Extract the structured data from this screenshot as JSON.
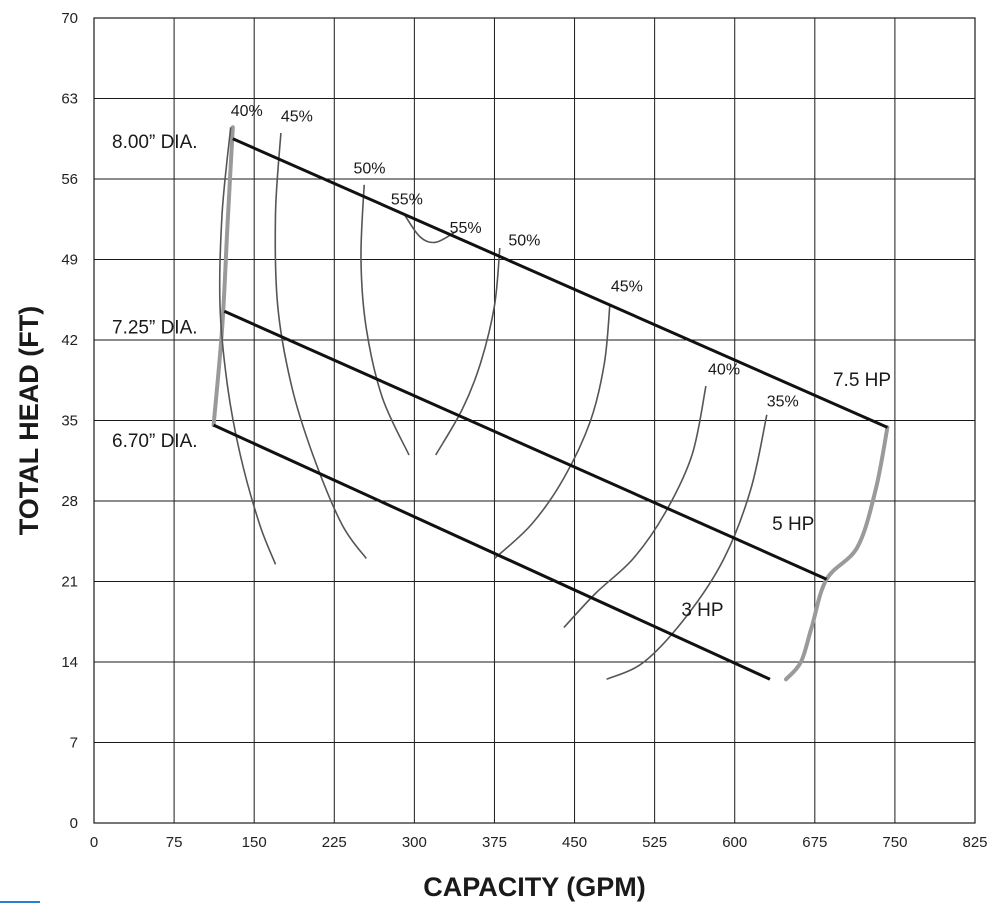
{
  "chart_data": {
    "type": "line",
    "xlabel": "CAPACITY (GPM)",
    "ylabel": "TOTAL HEAD (FT)",
    "xlim": [
      0,
      825
    ],
    "ylim": [
      0,
      70
    ],
    "x_ticks": [
      0,
      75,
      150,
      225,
      300,
      375,
      450,
      525,
      600,
      675,
      750,
      825
    ],
    "y_ticks": [
      0,
      7,
      14,
      21,
      28,
      35,
      42,
      49,
      56,
      63,
      70
    ],
    "x_tick_labels": [
      "0",
      "75",
      "150",
      "225",
      "300",
      "375",
      "450",
      "525",
      "600",
      "675",
      "750",
      "825"
    ],
    "y_tick_labels": [
      "0",
      "7",
      "14",
      "21",
      "28",
      "35",
      "42",
      "49",
      "56",
      "63",
      "70"
    ],
    "grid": true,
    "series": [
      {
        "name": "8.00” DIA.",
        "points": [
          [
            130,
            59.5
          ],
          [
            743,
            34.4
          ]
        ]
      },
      {
        "name": "7.25” DIA.",
        "points": [
          [
            122,
            44.5
          ],
          [
            686,
            21.2
          ]
        ]
      },
      {
        "name": "6.70” DIA.",
        "points": [
          [
            112,
            34.6
          ],
          [
            633,
            12.5
          ]
        ]
      }
    ],
    "envelope_left": [
      [
        130,
        60.5
      ],
      [
        125,
        52
      ],
      [
        120,
        43
      ],
      [
        112,
        34.6
      ]
    ],
    "envelope_right": [
      [
        743,
        34.4
      ],
      [
        732,
        29
      ],
      [
        715,
        24
      ],
      [
        686,
        21.2
      ],
      [
        672,
        17
      ],
      [
        662,
        14
      ],
      [
        648,
        12.5
      ]
    ],
    "efficiency_curves": [
      {
        "label": "40%",
        "points": [
          [
            128,
            60.5
          ],
          [
            120,
            53
          ],
          [
            118,
            45
          ],
          [
            125,
            38
          ],
          [
            137,
            32
          ],
          [
            155,
            26
          ],
          [
            170,
            22.5
          ]
        ],
        "label_at": [
          128,
          61.5
        ]
      },
      {
        "label": "45%",
        "points": [
          [
            175,
            60
          ],
          [
            170,
            53
          ],
          [
            172,
            45
          ],
          [
            185,
            38
          ],
          [
            205,
            32
          ],
          [
            232,
            26
          ],
          [
            255,
            23
          ]
        ],
        "label_at": [
          175,
          61
        ]
      },
      {
        "label": "50%",
        "points": [
          [
            253,
            55.5
          ],
          [
            250,
            49
          ],
          [
            255,
            43
          ],
          [
            270,
            37
          ],
          [
            295,
            32
          ]
        ],
        "label_at": [
          243,
          56.5
        ]
      },
      {
        "label": "55%",
        "points": [
          [
            290,
            53
          ],
          [
            305,
            51
          ],
          [
            320,
            50.5
          ],
          [
            340,
            51.5
          ]
        ],
        "label_at": [
          278,
          53.8
        ]
      },
      {
        "label": "55%",
        "points": [],
        "label_at": [
          333,
          51.3
        ]
      },
      {
        "label": "50%",
        "points": [
          [
            380,
            50
          ],
          [
            375,
            45
          ],
          [
            362,
            40
          ],
          [
            345,
            36
          ],
          [
            320,
            32
          ]
        ],
        "label_at": [
          388,
          50.2
        ]
      },
      {
        "label": "45%",
        "points": [
          [
            483,
            45
          ],
          [
            478,
            40
          ],
          [
            465,
            35
          ],
          [
            440,
            30
          ],
          [
            410,
            26
          ],
          [
            375,
            23
          ]
        ],
        "label_at": [
          484,
          46.2
        ]
      },
      {
        "label": "40%",
        "points": [
          [
            573,
            38
          ],
          [
            560,
            32
          ],
          [
            535,
            27
          ],
          [
            505,
            23
          ],
          [
            470,
            20
          ],
          [
            440,
            17
          ]
        ],
        "label_at": [
          575,
          39
        ]
      },
      {
        "label": "35%",
        "points": [
          [
            630,
            35.5
          ],
          [
            615,
            29
          ],
          [
            590,
            23
          ],
          [
            555,
            18
          ],
          [
            515,
            14
          ],
          [
            480,
            12.5
          ]
        ],
        "label_at": [
          630,
          36.2
        ]
      }
    ],
    "hp_labels": [
      {
        "label": "7.5 HP",
        "at": [
          692,
          38
        ]
      },
      {
        "label": "5 HP",
        "at": [
          635,
          25.5
        ]
      },
      {
        "label": "3 HP",
        "at": [
          550,
          18
        ]
      }
    ],
    "curve_labels": [
      {
        "label": "8.00” DIA.",
        "at": [
          20,
          59.2
        ]
      },
      {
        "label": "7.25” DIA.",
        "at": [
          20,
          43.1
        ]
      },
      {
        "label": "6.70” DIA.",
        "at": [
          20,
          33.2
        ]
      }
    ]
  }
}
